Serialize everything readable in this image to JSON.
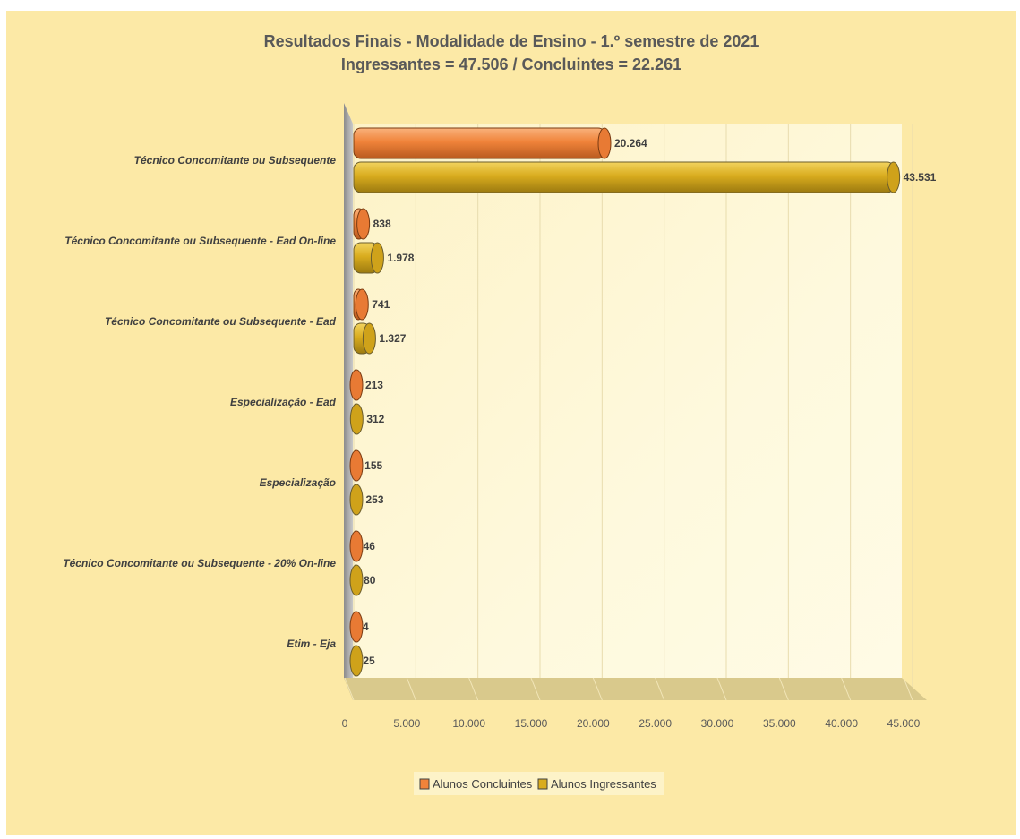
{
  "chart_data": {
    "type": "bar",
    "orientation": "horizontal",
    "title": "Resultados Finais - Modalidade de Ensino - 1.º semestre de 2021",
    "subtitle": "Ingressantes = 47.506 / Concluintes = 22.261",
    "categories": [
      "Técnico Concomitante ou Subsequente",
      "Técnico Concomitante ou Subsequente - Ead On-line",
      "Técnico Concomitante ou Subsequente - Ead",
      "Especialização - Ead",
      "Especialização",
      "Técnico Concomitante ou Subsequente - 20% On-line",
      "Etim - Eja"
    ],
    "series": [
      {
        "name": "Alunos Concluintes",
        "color": "#f0833a",
        "values": [
          20264,
          838,
          741,
          213,
          155,
          46,
          4
        ],
        "labels": [
          "20.264",
          "838",
          "741",
          "213",
          "155",
          "46",
          "4"
        ]
      },
      {
        "name": "Alunos Ingressantes",
        "color": "#d9ac1e",
        "values": [
          43531,
          1978,
          1327,
          312,
          253,
          80,
          25
        ],
        "labels": [
          "43.531",
          "1.978",
          "1.327",
          "312",
          "253",
          "80",
          "25"
        ]
      }
    ],
    "xlim": [
      0,
      45000
    ],
    "ticks": [
      0,
      5000,
      10000,
      15000,
      20000,
      25000,
      30000,
      35000,
      40000,
      45000
    ],
    "tick_labels": [
      "0",
      "5.000",
      "10.000",
      "15.000",
      "20.000",
      "25.000",
      "30.000",
      "35.000",
      "40.000",
      "45.000"
    ],
    "grid": true,
    "legend_position": "bottom",
    "background_color": "#fce9a6"
  }
}
